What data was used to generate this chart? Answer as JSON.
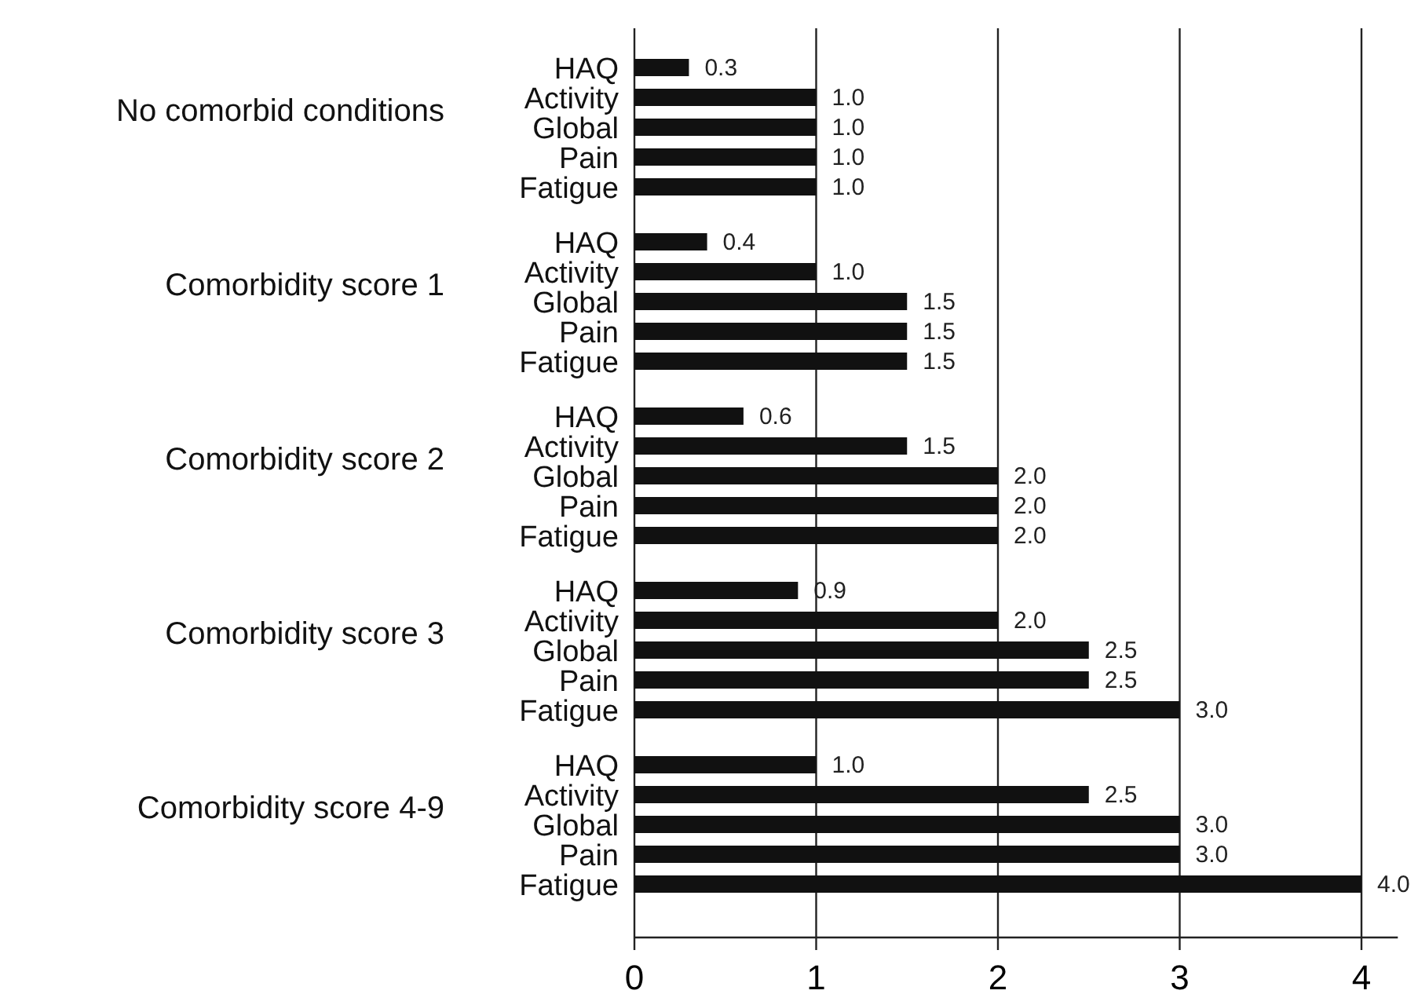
{
  "chart_data": {
    "type": "bar",
    "orientation": "horizontal",
    "categories": [
      "HAQ",
      "Activity",
      "Global",
      "Pain",
      "Fatigue",
      "HAQ",
      "Activity",
      "Global",
      "Pain",
      "Fatigue",
      "HAQ",
      "Activity",
      "Global",
      "Pain",
      "Fatigue",
      "HAQ",
      "Activity",
      "Global",
      "Pain",
      "Fatigue",
      "HAQ",
      "Activity",
      "Global",
      "Pain",
      "Fatigue"
    ],
    "values": [
      0.3,
      1.0,
      1.0,
      1.0,
      1.0,
      0.4,
      1.0,
      1.5,
      1.5,
      1.5,
      0.6,
      1.5,
      2.0,
      2.0,
      2.0,
      0.9,
      2.0,
      2.5,
      2.5,
      3.0,
      1.0,
      2.5,
      3.0,
      3.0,
      4.0
    ],
    "value_labels": [
      "0.3",
      "1.0",
      "1.0",
      "1.0",
      "1.0",
      "0.4",
      "1.0",
      "1.5",
      "1.5",
      "1.5",
      "0.6",
      "1.5",
      "2.0",
      "2.0",
      "2.0",
      "0.9",
      "2.0",
      "2.5",
      "2.5",
      "3.0",
      "1.0",
      "2.5",
      "3.0",
      "3.0",
      "4.0"
    ],
    "color": "#111111",
    "annotations": [
      "No comorbid conditions",
      "Comorbidity score 1",
      "Comorbidity score 2",
      "Comorbidity score 3",
      "Comorbidity score 4-9"
    ],
    "xlim": [
      0,
      4.2
    ],
    "xticks": [
      0,
      1,
      2,
      3,
      4
    ],
    "grid": "x"
  }
}
